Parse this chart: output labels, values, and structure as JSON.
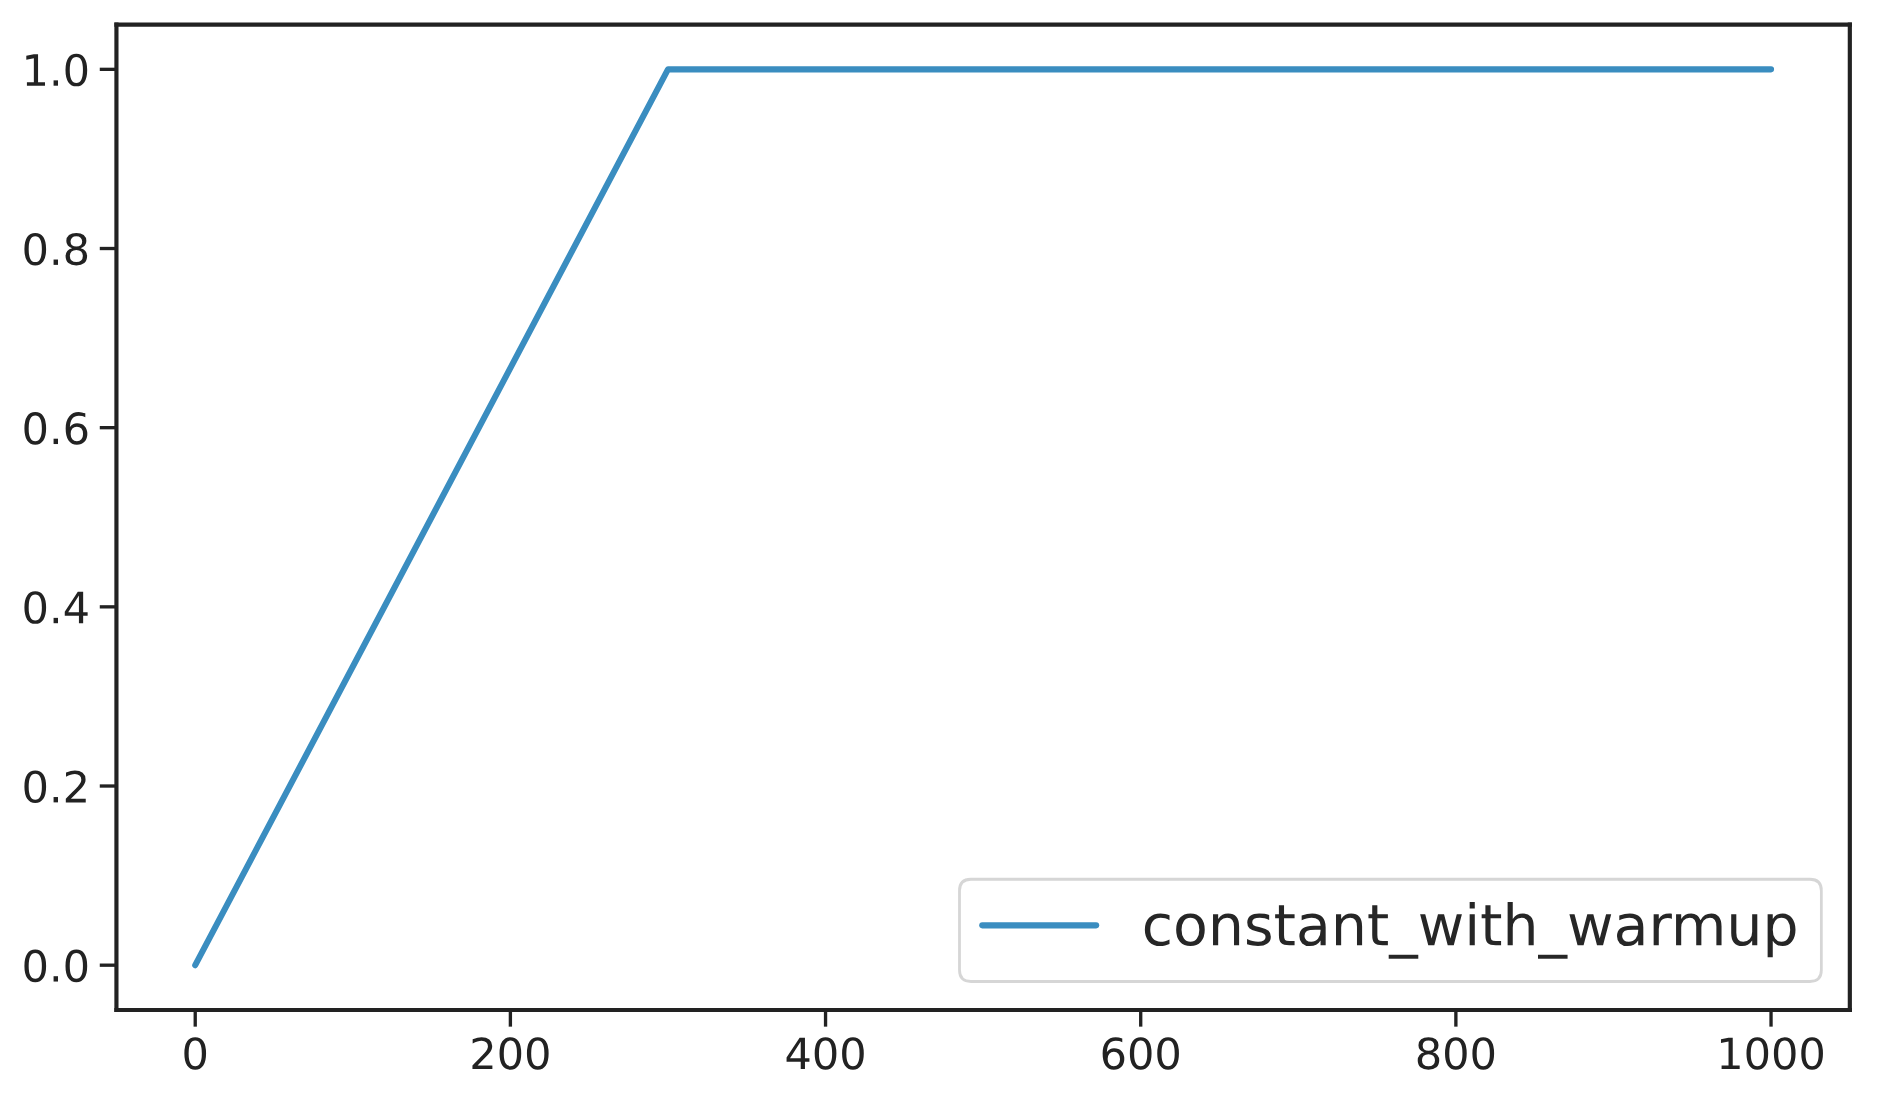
{
  "chart_data": {
    "type": "line",
    "x": [
      0,
      300,
      1000
    ],
    "series": [
      {
        "name": "constant_with_warmup",
        "color": "#3a8dc0",
        "values": [
          0,
          1,
          1
        ]
      }
    ],
    "xlim": [
      -50,
      1050
    ],
    "ylim": [
      -0.05,
      1.05
    ],
    "xticks": [
      0,
      200,
      400,
      600,
      800,
      1000
    ],
    "yticks": [
      {
        "value": 0,
        "label": "0.0"
      },
      {
        "value": 0.2,
        "label": "0.2"
      },
      {
        "value": 0.4,
        "label": "0.4"
      },
      {
        "value": 0.6,
        "label": "0.6"
      },
      {
        "value": 0.8,
        "label": "0.8"
      },
      {
        "value": 1,
        "label": "1.0"
      }
    ],
    "grid": false,
    "legend": "bottom right",
    "marker": "none",
    "line_style": "solid"
  }
}
